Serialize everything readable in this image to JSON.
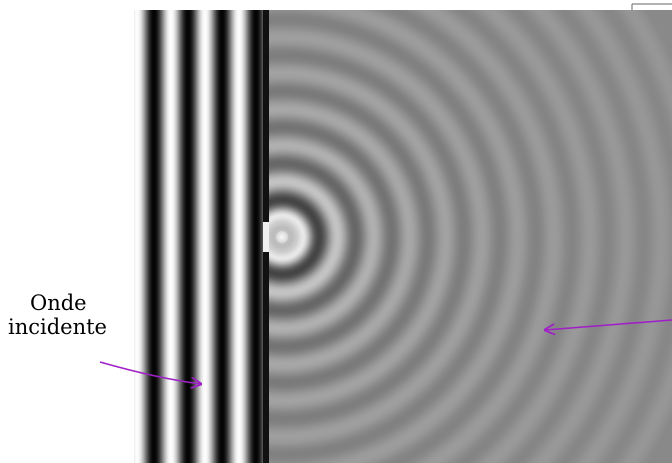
{
  "labels": {
    "incident_line1": "Onde",
    "incident_line2": "incidente"
  },
  "colors": {
    "arrow": "#a020c8",
    "field_gray": "#8f8f8f",
    "wall": "#111111",
    "wave_light": "#f8f8f8",
    "wave_dark": "#050505"
  }
}
